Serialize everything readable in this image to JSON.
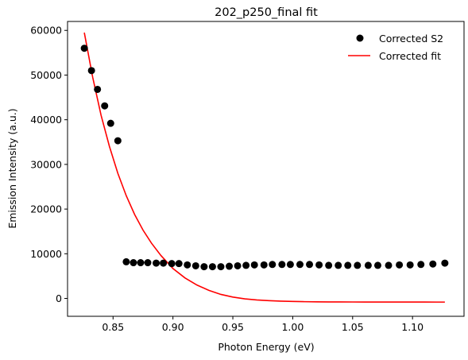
{
  "chart_data": {
    "type": "scatter",
    "title": "202_p250_final fit",
    "xlabel": "Photon Energy (eV)",
    "ylabel": "Emission Intensity (a.u.)",
    "xlim": [
      0.812,
      1.143
    ],
    "ylim": [
      -4000,
      62000
    ],
    "xticks": [
      0.85,
      0.9,
      0.95,
      1.0,
      1.05,
      1.1
    ],
    "xtick_labels": [
      "0.85",
      "0.90",
      "0.95",
      "1.00",
      "1.05",
      "1.10"
    ],
    "yticks": [
      0,
      10000,
      20000,
      30000,
      40000,
      50000,
      60000
    ],
    "ytick_labels": [
      "0",
      "10000",
      "20000",
      "30000",
      "40000",
      "50000",
      "60000"
    ],
    "grid": false,
    "legend_position": "top-right",
    "series": [
      {
        "name": "Corrected S2",
        "kind": "scatter",
        "color": "#000000",
        "x": [
          0.826,
          0.832,
          0.837,
          0.843,
          0.848,
          0.854,
          0.861,
          0.867,
          0.873,
          0.879,
          0.886,
          0.892,
          0.899,
          0.905,
          0.912,
          0.919,
          0.926,
          0.933,
          0.94,
          0.947,
          0.954,
          0.961,
          0.968,
          0.976,
          0.983,
          0.991,
          0.998,
          1.006,
          1.014,
          1.022,
          1.03,
          1.038,
          1.046,
          1.054,
          1.063,
          1.071,
          1.08,
          1.089,
          1.098,
          1.107,
          1.117,
          1.127
        ],
        "y": [
          56000,
          51000,
          46800,
          43100,
          39200,
          35300,
          8200,
          8000,
          8000,
          8000,
          7900,
          7900,
          7800,
          7800,
          7500,
          7300,
          7100,
          7100,
          7100,
          7200,
          7300,
          7400,
          7500,
          7500,
          7600,
          7600,
          7600,
          7600,
          7600,
          7500,
          7400,
          7400,
          7400,
          7400,
          7400,
          7400,
          7400,
          7500,
          7500,
          7600,
          7700,
          7900
        ]
      },
      {
        "name": "Corrected fit",
        "kind": "line",
        "color": "#ff0000",
        "x": [
          0.826,
          0.833,
          0.84,
          0.847,
          0.854,
          0.861,
          0.868,
          0.875,
          0.882,
          0.89,
          0.9,
          0.91,
          0.92,
          0.93,
          0.94,
          0.95,
          0.96,
          0.97,
          0.98,
          0.99,
          1.0,
          1.01,
          1.02,
          1.03,
          1.04,
          1.05,
          1.06,
          1.07,
          1.08,
          1.09,
          1.1,
          1.11,
          1.12,
          1.127
        ],
        "y": [
          59500,
          49500,
          41000,
          34000,
          28000,
          23000,
          18800,
          15300,
          12400,
          9600,
          6700,
          4600,
          3000,
          1800,
          900,
          300,
          -100,
          -350,
          -500,
          -600,
          -680,
          -730,
          -760,
          -780,
          -790,
          -800,
          -805,
          -810,
          -812,
          -814,
          -816,
          -818,
          -819,
          -820
        ]
      }
    ]
  }
}
